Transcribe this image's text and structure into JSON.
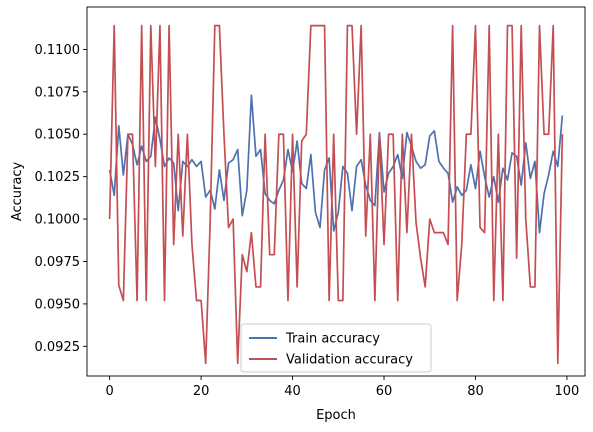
{
  "chart_data": {
    "type": "line",
    "xlabel": "Epoch",
    "ylabel": "Accuracy",
    "xlim": [
      -4.95,
      103.95
    ],
    "ylim": [
      0.09075,
      0.1125
    ],
    "xticks": [
      0,
      20,
      40,
      60,
      80,
      100
    ],
    "yticks": [
      0.0925,
      0.095,
      0.0975,
      0.1,
      0.1025,
      0.105,
      0.1075,
      0.11
    ],
    "ytick_labels": [
      "0.0925",
      "0.0950",
      "0.0975",
      "0.1000",
      "0.1025",
      "0.1050",
      "0.1075",
      "0.1100"
    ],
    "grid": false,
    "legend_position": "lower-center",
    "x": [
      0,
      1,
      2,
      3,
      4,
      5,
      6,
      7,
      8,
      9,
      10,
      11,
      12,
      13,
      14,
      15,
      16,
      17,
      18,
      19,
      20,
      21,
      22,
      23,
      24,
      25,
      26,
      27,
      28,
      29,
      30,
      31,
      32,
      33,
      34,
      35,
      36,
      37,
      38,
      39,
      40,
      41,
      42,
      43,
      44,
      45,
      46,
      47,
      48,
      49,
      50,
      51,
      52,
      53,
      54,
      55,
      56,
      57,
      58,
      59,
      60,
      61,
      62,
      63,
      64,
      65,
      66,
      67,
      68,
      69,
      70,
      71,
      72,
      73,
      74,
      75,
      76,
      77,
      78,
      79,
      80,
      81,
      82,
      83,
      84,
      85,
      86,
      87,
      88,
      89,
      90,
      91,
      92,
      93,
      94,
      95,
      96,
      97,
      98,
      99
    ],
    "series": [
      {
        "name": "Train accuracy",
        "color": "#4c72b0",
        "values": [
          0.1029,
          0.1014,
          0.1055,
          0.1026,
          0.105,
          0.1044,
          0.1032,
          0.1043,
          0.1034,
          0.1037,
          0.106,
          0.1047,
          0.1031,
          0.1036,
          0.1033,
          0.1005,
          0.1034,
          0.1031,
          0.1035,
          0.1031,
          0.1034,
          0.1013,
          0.1017,
          0.1006,
          0.1029,
          0.1011,
          0.1033,
          0.1035,
          0.1041,
          0.1002,
          0.1017,
          0.1073,
          0.1037,
          0.1041,
          0.1015,
          0.1011,
          0.1009,
          0.1017,
          0.1023,
          0.1041,
          0.1028,
          0.1046,
          0.1021,
          0.1018,
          0.1038,
          0.1004,
          0.0995,
          0.1029,
          0.1036,
          0.0993,
          0.1004,
          0.1031,
          0.1027,
          0.1005,
          0.1031,
          0.1035,
          0.102,
          0.1011,
          0.1008,
          0.1051,
          0.1016,
          0.1027,
          0.1031,
          0.1038,
          0.1024,
          0.1051,
          0.1043,
          0.1034,
          0.103,
          0.1032,
          0.1049,
          0.1052,
          0.1034,
          0.103,
          0.1027,
          0.101,
          0.1019,
          0.1014,
          0.1017,
          0.1032,
          0.1018,
          0.104,
          0.1025,
          0.1013,
          0.1025,
          0.101,
          0.103,
          0.1023,
          0.1039,
          0.1037,
          0.102,
          0.1045,
          0.1024,
          0.1034,
          0.0992,
          0.1015,
          0.1026,
          0.104,
          0.1031,
          0.1061
        ]
      },
      {
        "name": "Validation accuracy",
        "color": "#c44e52",
        "values": [
          0.1,
          0.1114,
          0.0961,
          0.0952,
          0.105,
          0.105,
          0.0952,
          0.1114,
          0.0952,
          0.1114,
          0.1031,
          0.1114,
          0.0952,
          0.1114,
          0.0985,
          0.105,
          0.099,
          0.105,
          0.0985,
          0.0952,
          0.0952,
          0.0915,
          0.1,
          0.1114,
          0.1114,
          0.105,
          0.0995,
          0.1,
          0.0915,
          0.0979,
          0.0969,
          0.0992,
          0.096,
          0.096,
          0.105,
          0.0979,
          0.0979,
          0.105,
          0.105,
          0.0952,
          0.105,
          0.096,
          0.1046,
          0.105,
          0.1114,
          0.1114,
          0.1114,
          0.1114,
          0.0952,
          0.105,
          0.0952,
          0.0952,
          0.1114,
          0.1114,
          0.105,
          0.1114,
          0.099,
          0.105,
          0.0952,
          0.105,
          0.0985,
          0.105,
          0.105,
          0.0952,
          0.105,
          0.0992,
          0.105,
          0.0998,
          0.0977,
          0.096,
          0.1,
          0.0992,
          0.0992,
          0.0992,
          0.0985,
          0.1114,
          0.0952,
          0.0985,
          0.105,
          0.105,
          0.1114,
          0.0995,
          0.0992,
          0.1114,
          0.0952,
          0.105,
          0.0952,
          0.1114,
          0.1114,
          0.0977,
          0.1114,
          0.1,
          0.096,
          0.096,
          0.1114,
          0.105,
          0.105,
          0.1114,
          0.0915,
          0.105
        ]
      }
    ]
  }
}
